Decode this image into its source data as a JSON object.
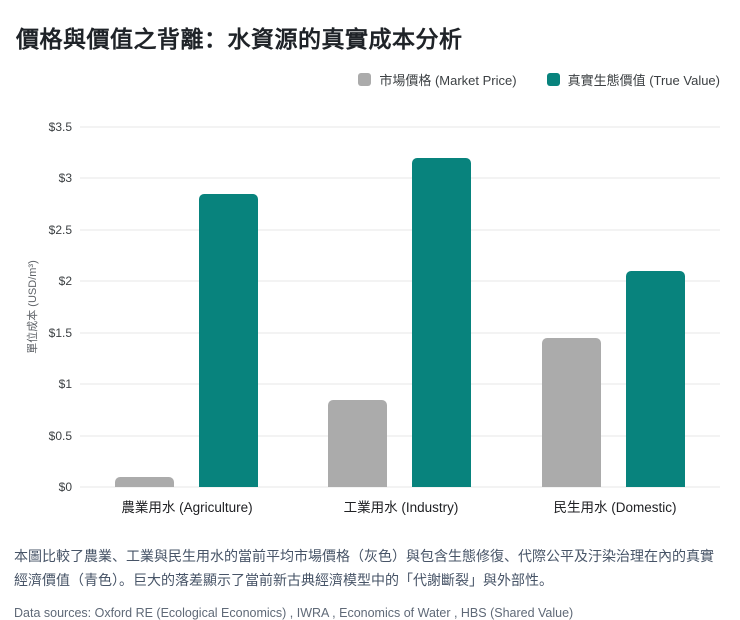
{
  "title": "價格與價值之背離：水資源的真實成本分析",
  "legend": {
    "market_label": "市場價格 (Market Price)",
    "true_label": "真實生態價值 (True Value)"
  },
  "colors": {
    "market": "#ABABAB",
    "true_value": "#08837D",
    "gridline": "#F3F3F3",
    "title_text": "#1F2328",
    "caption_text": "#475467",
    "sources_text": "#5F6977"
  },
  "chart_data": {
    "type": "bar",
    "title": "價格與價值之背離：水資源的真實成本分析",
    "categories": [
      "農業用水 (Agriculture)",
      "工業用水 (Industry)",
      "民生用水 (Domestic)"
    ],
    "series": [
      {
        "name": "市場價格 (Market Price)",
        "color": "#ABABAB",
        "values": [
          0.1,
          0.85,
          1.45
        ]
      },
      {
        "name": "真實生態價值 (True Value)",
        "color": "#08837D",
        "values": [
          2.85,
          3.2,
          2.1
        ]
      }
    ],
    "xlabel": "",
    "ylabel": "單位成本 (USD/m³)",
    "ylim": [
      0,
      3.5
    ],
    "ytick_values": [
      0,
      0.5,
      1,
      1.5,
      2,
      2.5,
      3,
      3.5
    ],
    "ytick_labels": [
      "$0",
      "$0.5",
      "$1",
      "$1.5",
      "$2",
      "$2.5",
      "$3",
      "$3.5"
    ],
    "grid": true,
    "legend_position": "top-right"
  },
  "caption": "本圖比較了農業、工業與民生用水的當前平均市場價格（灰色）與包含生態修復、代際公平及汙染治理在內的真實經濟價值（青色）。巨大的落差顯示了當前新古典經濟模型中的「代謝斷裂」與外部性。",
  "data_sources": "Data sources: Oxford RE (Ecological Economics) , IWRA , Economics of Water , HBS (Shared Value)"
}
